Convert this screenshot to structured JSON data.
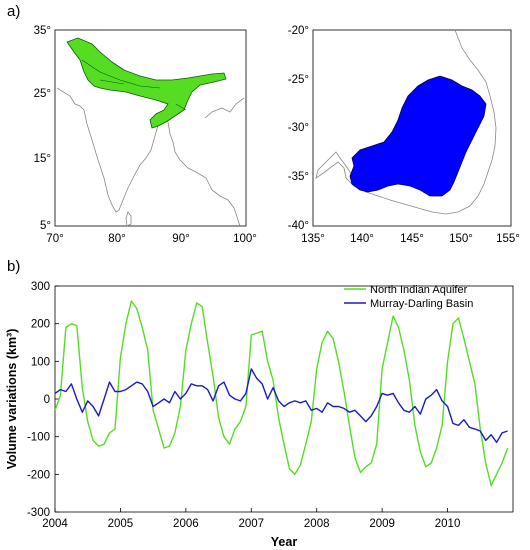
{
  "panels": {
    "a": "a)",
    "b": "b)"
  },
  "colors": {
    "aquifer": "#55dd22",
    "basin": "#1a1acc",
    "map_blue": "#0000ff",
    "coast": "#888888"
  },
  "map_india": {
    "xticks": [
      "70°",
      "80°",
      "90°",
      "100°"
    ],
    "yticks": [
      "35°",
      "25°",
      "15°",
      "5°"
    ]
  },
  "map_australia": {
    "xticks": [
      "135°",
      "140°",
      "145°",
      "150°",
      "155°"
    ],
    "yticks": [
      "-20°",
      "-25°",
      "-30°",
      "-35°",
      "-40°"
    ]
  },
  "chart_data": {
    "type": "line",
    "xlabel": "Year",
    "ylabel": "Volume variations (km³)",
    "xlim": [
      2004,
      2011
    ],
    "ylim": [
      -300,
      300
    ],
    "xticks": [
      2004,
      2005,
      2006,
      2007,
      2008,
      2009,
      2010
    ],
    "yticks": [
      300,
      200,
      100,
      0,
      -100,
      -200,
      -300
    ],
    "legend_position": "top-right",
    "series": [
      {
        "name": "North Indian Aquifer",
        "color": "#55dd22",
        "x": [
          2004.0,
          2004.083,
          2004.167,
          2004.25,
          2004.333,
          2004.417,
          2004.5,
          2004.583,
          2004.667,
          2004.75,
          2004.833,
          2004.917,
          2005.0,
          2005.083,
          2005.167,
          2005.25,
          2005.333,
          2005.417,
          2005.5,
          2005.583,
          2005.667,
          2005.75,
          2005.833,
          2005.917,
          2006.0,
          2006.083,
          2006.167,
          2006.25,
          2006.333,
          2006.417,
          2006.5,
          2006.583,
          2006.667,
          2006.75,
          2006.833,
          2006.917,
          2007.0,
          2007.083,
          2007.167,
          2007.25,
          2007.333,
          2007.417,
          2007.5,
          2007.583,
          2007.667,
          2007.75,
          2007.833,
          2007.917,
          2008.0,
          2008.083,
          2008.167,
          2008.25,
          2008.333,
          2008.417,
          2008.5,
          2008.583,
          2008.667,
          2008.75,
          2008.833,
          2008.917,
          2009.0,
          2009.083,
          2009.167,
          2009.25,
          2009.333,
          2009.417,
          2009.5,
          2009.583,
          2009.667,
          2009.75,
          2009.833,
          2009.917,
          2010.0,
          2010.083,
          2010.167,
          2010.25,
          2010.333,
          2010.417,
          2010.5,
          2010.583,
          2010.667,
          2010.75,
          2010.833,
          2010.917
        ],
        "values": [
          -30,
          10,
          190,
          200,
          195,
          30,
          -60,
          -110,
          -125,
          -120,
          -90,
          -80,
          110,
          200,
          260,
          240,
          190,
          130,
          -30,
          -80,
          -130,
          -125,
          -90,
          -20,
          130,
          200,
          255,
          245,
          150,
          60,
          -50,
          -100,
          -120,
          -80,
          -60,
          -20,
          170,
          175,
          180,
          100,
          50,
          -50,
          -120,
          -185,
          -200,
          -175,
          -120,
          -60,
          80,
          150,
          180,
          160,
          100,
          20,
          -70,
          -155,
          -195,
          -180,
          -170,
          -120,
          80,
          150,
          220,
          190,
          130,
          50,
          -70,
          -140,
          -180,
          -170,
          -130,
          -70,
          100,
          200,
          215,
          160,
          100,
          40,
          -80,
          -170,
          -230,
          -200,
          -170,
          -130
        ]
      },
      {
        "name": "Murray-Darling Basin",
        "color": "#1a1acc",
        "x": [
          2004.0,
          2004.083,
          2004.167,
          2004.25,
          2004.333,
          2004.417,
          2004.5,
          2004.583,
          2004.667,
          2004.75,
          2004.833,
          2004.917,
          2005.0,
          2005.083,
          2005.167,
          2005.25,
          2005.333,
          2005.417,
          2005.5,
          2005.583,
          2005.667,
          2005.75,
          2005.833,
          2005.917,
          2006.0,
          2006.083,
          2006.167,
          2006.25,
          2006.333,
          2006.417,
          2006.5,
          2006.583,
          2006.667,
          2006.75,
          2006.833,
          2006.917,
          2007.0,
          2007.083,
          2007.167,
          2007.25,
          2007.333,
          2007.417,
          2007.5,
          2007.583,
          2007.667,
          2007.75,
          2007.833,
          2007.917,
          2008.0,
          2008.083,
          2008.167,
          2008.25,
          2008.333,
          2008.417,
          2008.5,
          2008.583,
          2008.667,
          2008.75,
          2008.833,
          2008.917,
          2009.0,
          2009.083,
          2009.167,
          2009.25,
          2009.333,
          2009.417,
          2009.5,
          2009.583,
          2009.667,
          2009.75,
          2009.833,
          2009.917,
          2010.0,
          2010.083,
          2010.167,
          2010.25,
          2010.333,
          2010.417,
          2010.5,
          2010.583,
          2010.667,
          2010.75,
          2010.833,
          2010.917
        ],
        "values": [
          15,
          25,
          20,
          40,
          0,
          -35,
          -5,
          -20,
          -45,
          0,
          45,
          20,
          20,
          25,
          35,
          45,
          40,
          20,
          -20,
          -10,
          0,
          -10,
          20,
          0,
          15,
          40,
          35,
          35,
          25,
          -5,
          35,
          45,
          10,
          0,
          -5,
          15,
          80,
          55,
          40,
          0,
          30,
          -5,
          -20,
          -10,
          -5,
          -10,
          -5,
          -30,
          -25,
          -35,
          -10,
          -20,
          -20,
          -25,
          -35,
          -30,
          -45,
          -60,
          -45,
          -20,
          15,
          10,
          15,
          -10,
          -30,
          -35,
          -20,
          -40,
          0,
          10,
          25,
          -5,
          -20,
          -65,
          -70,
          -55,
          -75,
          -80,
          -85,
          -110,
          -95,
          -115,
          -90,
          -85
        ]
      }
    ]
  }
}
